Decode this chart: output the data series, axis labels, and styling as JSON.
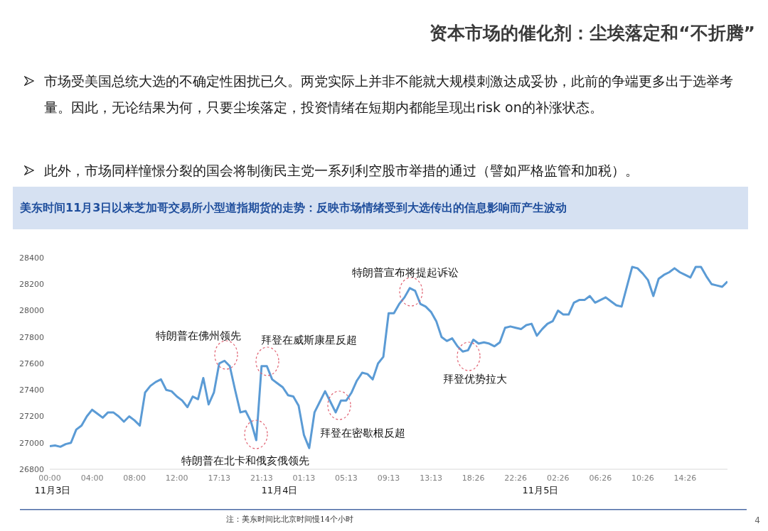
{
  "chart_data": {
    "type": "line",
    "title": "资本市场的催化剂：尘埃落定和“不折腾”",
    "subtitle": "美东时间11月3日以来芝加哥交易所小型道指期货的走势：反映市场情绪受到大选传出的信息影响而产生波动",
    "categories": [
      "00:00",
      null,
      null,
      null,
      null,
      null,
      null,
      null,
      "04:00",
      null,
      null,
      null,
      null,
      null,
      null,
      null,
      "08:00",
      null,
      null,
      null,
      null,
      null,
      null,
      null,
      "12:00",
      null,
      null,
      null,
      null,
      null,
      null,
      null,
      "17:13",
      null,
      null,
      null,
      null,
      null,
      null,
      null,
      "21:13",
      null,
      null,
      null,
      null,
      null,
      null,
      null,
      "01:13",
      null,
      null,
      null,
      null,
      null,
      null,
      null,
      "05:13",
      null,
      null,
      null,
      null,
      null,
      null,
      null,
      "09:13",
      null,
      null,
      null,
      null,
      null,
      null,
      null,
      "13:13",
      null,
      null,
      null,
      null,
      null,
      null,
      null,
      "18:26",
      null,
      null,
      null,
      null,
      null,
      null,
      null,
      "22:26",
      null,
      null,
      null,
      null,
      null,
      null,
      null,
      "02:26",
      null,
      null,
      null,
      null,
      null,
      null,
      null,
      "06:26",
      null,
      null,
      null,
      null,
      null,
      null,
      null,
      "10:26",
      null,
      null,
      null,
      null,
      null,
      null,
      null,
      "14:26",
      null,
      null,
      null,
      null,
      null,
      null,
      null,
      null
    ],
    "series": [
      {
        "color": "#5b9bd5",
        "values": [
          26975,
          26980,
          26970,
          26990,
          27000,
          27100,
          27130,
          27200,
          27250,
          27220,
          27190,
          27230,
          27230,
          27200,
          27160,
          27200,
          27170,
          27130,
          27380,
          27430,
          27460,
          27480,
          27400,
          27390,
          27350,
          27320,
          27270,
          27350,
          27330,
          27490,
          27290,
          27380,
          27600,
          27620,
          27580,
          27400,
          27230,
          27240,
          27160,
          27020,
          27580,
          27580,
          27480,
          27450,
          27420,
          27360,
          27350,
          27280,
          27060,
          26960,
          27230,
          27310,
          27390,
          27310,
          27230,
          27320,
          27320,
          27380,
          27470,
          27530,
          27520,
          27480,
          27600,
          27650,
          27980,
          27980,
          28050,
          28100,
          28170,
          28150,
          28050,
          28030,
          27990,
          27920,
          27800,
          27770,
          27790,
          27730,
          27690,
          27700,
          27780,
          27750,
          27760,
          27750,
          27730,
          27760,
          27870,
          27880,
          27870,
          27860,
          27890,
          27900,
          27810,
          27860,
          27900,
          27920,
          28000,
          27970,
          27970,
          28060,
          28080,
          28080,
          28110,
          28060,
          28080,
          28100,
          28070,
          28040,
          28030,
          28180,
          28330,
          28320,
          28280,
          28230,
          28110,
          28240,
          28270,
          28290,
          28320,
          28290,
          28270,
          28250,
          28330,
          28330,
          28260,
          28200,
          28190,
          28180,
          28220
        ]
      }
    ],
    "ylim": [
      26800,
      28400
    ],
    "yticks": [
      26800,
      27000,
      27200,
      27400,
      27600,
      27800,
      28000,
      28200,
      28400
    ],
    "grid": false,
    "legend": false,
    "marker": "none",
    "line_style": "solid",
    "annotations": [
      "市场受美国总统大选的不确定性困扰已久。两党实际上并非不能就大规模刺激达成妥协，此前的争端更多出于选举考量。因此，无论结果为何，只要尘埃落定，投资情绪在短期内都能呈现出risk on的补涨状态。",
      "此外，市场同样憧憬分裂的国会将制衡民主党一系列利空股市举措的通过（譬如严格监管和加税）。",
      "特朗普在佛州领先",
      "拜登在威斯康星反超",
      "特朗普在北卡和俄亥俄领先",
      "拜登在密歇根反超",
      "特朗普宣布将提起诉讼",
      "拜登优势拉大",
      "11月3日",
      "11月4日",
      "11月5日",
      "注：美东时间比北京时间慢14个小时",
      "4"
    ]
  }
}
